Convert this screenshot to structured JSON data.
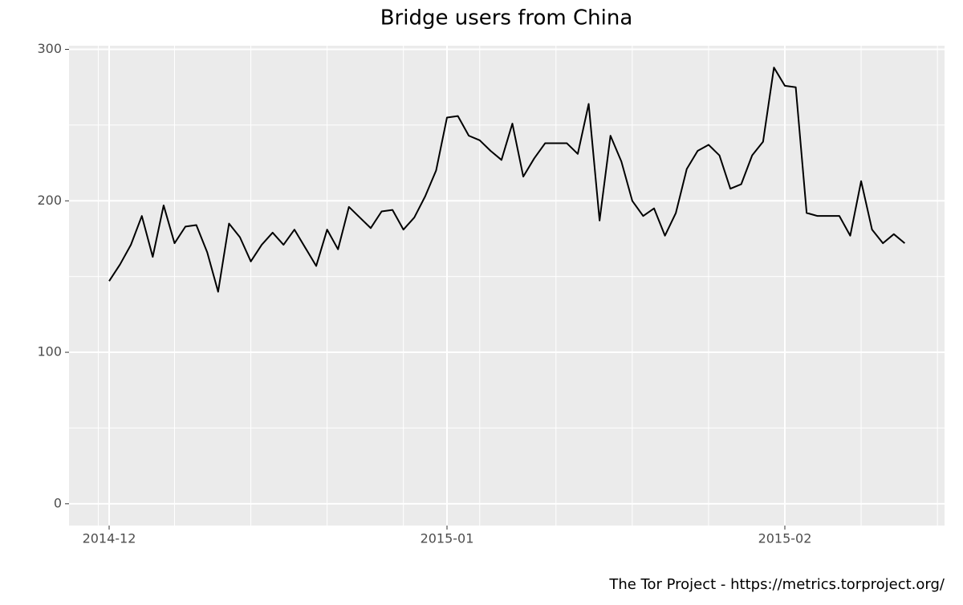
{
  "chart_data": {
    "type": "line",
    "title": "Bridge users from China",
    "caption": "The Tor Project - https://metrics.torproject.org/",
    "categories": [
      "2014-12",
      null,
      null,
      null,
      null,
      null,
      null,
      null,
      null,
      null,
      null,
      null,
      null,
      null,
      null,
      null,
      null,
      null,
      null,
      null,
      null,
      null,
      null,
      null,
      null,
      null,
      null,
      null,
      null,
      null,
      null,
      "2015-01",
      null,
      null,
      null,
      null,
      null,
      null,
      null,
      null,
      null,
      null,
      null,
      null,
      null,
      null,
      null,
      null,
      null,
      null,
      null,
      null,
      null,
      null,
      null,
      null,
      null,
      null,
      null,
      null,
      null,
      null,
      "2015-02",
      null,
      null,
      null,
      null,
      null,
      null,
      null,
      null,
      null,
      null,
      null
    ],
    "values": [
      147,
      158,
      171,
      190,
      163,
      197,
      172,
      183,
      184,
      166,
      140,
      185,
      176,
      160,
      171,
      179,
      171,
      181,
      169,
      157,
      181,
      168,
      196,
      189,
      182,
      193,
      194,
      181,
      189,
      203,
      220,
      255,
      256,
      243,
      240,
      233,
      227,
      251,
      216,
      228,
      238,
      238,
      238,
      231,
      264,
      187,
      243,
      226,
      200,
      190,
      195,
      177,
      192,
      221,
      233,
      237,
      230,
      208,
      211,
      230,
      239,
      288,
      276,
      275,
      192,
      190,
      190,
      190,
      177,
      213,
      181,
      172,
      178,
      172
    ],
    "color": "#000000",
    "ylim": [
      -14.4,
      302.4
    ],
    "yticks": [
      0,
      100,
      200,
      300
    ],
    "grid": true
  }
}
